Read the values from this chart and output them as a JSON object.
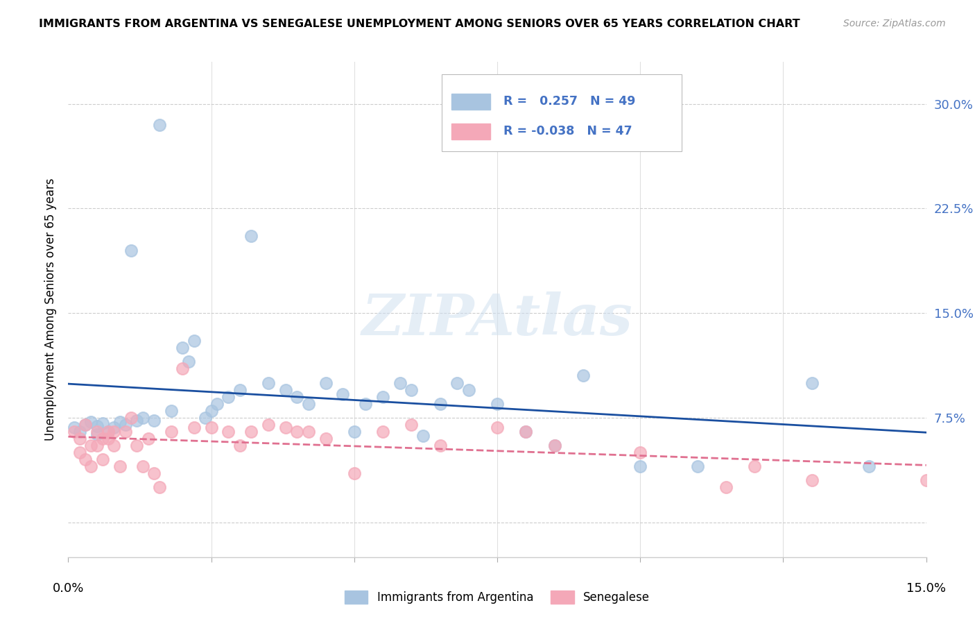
{
  "title": "IMMIGRANTS FROM ARGENTINA VS SENEGALESE UNEMPLOYMENT AMONG SENIORS OVER 65 YEARS CORRELATION CHART",
  "source": "Source: ZipAtlas.com",
  "ylabel": "Unemployment Among Seniors over 65 years",
  "yticks": [
    0.0,
    0.075,
    0.15,
    0.225,
    0.3
  ],
  "ytick_labels": [
    "",
    "7.5%",
    "15.0%",
    "22.5%",
    "30.0%"
  ],
  "xlim": [
    0.0,
    0.15
  ],
  "ylim": [
    -0.025,
    0.33
  ],
  "R_argentina": 0.257,
  "N_argentina": 49,
  "R_senegalese": -0.038,
  "N_senegalese": 47,
  "legend_labels": [
    "Immigrants from Argentina",
    "Senegalese"
  ],
  "argentina_color": "#a8c4e0",
  "senegalese_color": "#f4a8b8",
  "trendline_argentina_color": "#1a4fa0",
  "trendline_senegalese_color": "#e07090",
  "watermark": "ZIPAtlas",
  "argentina_x": [
    0.001,
    0.002,
    0.003,
    0.004,
    0.005,
    0.005,
    0.006,
    0.007,
    0.008,
    0.009,
    0.01,
    0.011,
    0.012,
    0.013,
    0.015,
    0.016,
    0.018,
    0.02,
    0.021,
    0.022,
    0.024,
    0.025,
    0.026,
    0.028,
    0.03,
    0.032,
    0.035,
    0.038,
    0.04,
    0.042,
    0.045,
    0.048,
    0.05,
    0.052,
    0.055,
    0.058,
    0.06,
    0.062,
    0.065,
    0.068,
    0.07,
    0.075,
    0.08,
    0.085,
    0.09,
    0.1,
    0.11,
    0.13,
    0.14
  ],
  "argentina_y": [
    0.068,
    0.065,
    0.07,
    0.072,
    0.063,
    0.069,
    0.071,
    0.065,
    0.068,
    0.072,
    0.07,
    0.195,
    0.073,
    0.075,
    0.073,
    0.285,
    0.08,
    0.125,
    0.115,
    0.13,
    0.075,
    0.08,
    0.085,
    0.09,
    0.095,
    0.205,
    0.1,
    0.095,
    0.09,
    0.085,
    0.1,
    0.092,
    0.065,
    0.085,
    0.09,
    0.1,
    0.095,
    0.062,
    0.085,
    0.1,
    0.095,
    0.085,
    0.065,
    0.055,
    0.105,
    0.04,
    0.04,
    0.1,
    0.04
  ],
  "senegalese_x": [
    0.001,
    0.002,
    0.002,
    0.003,
    0.003,
    0.004,
    0.004,
    0.005,
    0.005,
    0.006,
    0.006,
    0.007,
    0.007,
    0.008,
    0.008,
    0.009,
    0.01,
    0.011,
    0.012,
    0.013,
    0.014,
    0.015,
    0.016,
    0.018,
    0.02,
    0.022,
    0.025,
    0.028,
    0.03,
    0.032,
    0.035,
    0.038,
    0.04,
    0.042,
    0.045,
    0.05,
    0.055,
    0.06,
    0.065,
    0.075,
    0.08,
    0.085,
    0.1,
    0.115,
    0.12,
    0.13,
    0.15
  ],
  "senegalese_y": [
    0.065,
    0.06,
    0.05,
    0.07,
    0.045,
    0.055,
    0.04,
    0.065,
    0.055,
    0.06,
    0.045,
    0.065,
    0.06,
    0.055,
    0.065,
    0.04,
    0.065,
    0.075,
    0.055,
    0.04,
    0.06,
    0.035,
    0.025,
    0.065,
    0.11,
    0.068,
    0.068,
    0.065,
    0.055,
    0.065,
    0.07,
    0.068,
    0.065,
    0.065,
    0.06,
    0.035,
    0.065,
    0.07,
    0.055,
    0.068,
    0.065,
    0.055,
    0.05,
    0.025,
    0.04,
    0.03,
    0.03
  ]
}
